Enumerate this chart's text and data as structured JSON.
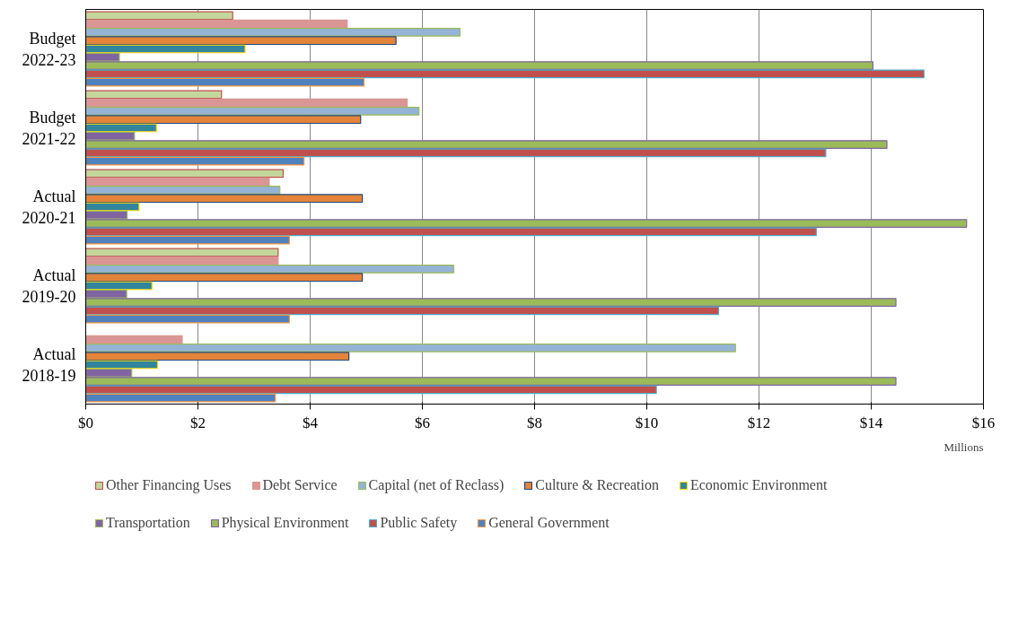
{
  "chart_data": {
    "type": "bar",
    "orientation": "horizontal",
    "xlabel": "Millions",
    "categories": [
      "Budget 2022-23",
      "Budget 2021-22",
      "Actual 2020-21",
      "Actual 2019-20",
      "Actual 2018-19"
    ],
    "series": [
      {
        "name": "Other Financing Uses",
        "color": "#c3d69b",
        "values": [
          2.62,
          2.42,
          3.52,
          3.43,
          0
        ]
      },
      {
        "name": "Debt Service",
        "color": "#d99694",
        "values": [
          4.66,
          5.73,
          3.27,
          3.43,
          1.72
        ]
      },
      {
        "name": "Capital (net of Reclass)",
        "color": "#95b3d7",
        "values": [
          6.67,
          5.94,
          3.46,
          6.56,
          11.58
        ]
      },
      {
        "name": "Culture & Recreation",
        "color": "#e3843a",
        "values": [
          5.53,
          4.9,
          4.93,
          4.93,
          4.69
        ]
      },
      {
        "name": "Economic Environment",
        "color": "#31859c",
        "values": [
          2.84,
          1.26,
          0.95,
          1.18,
          1.28
        ]
      },
      {
        "name": "Transportation",
        "color": "#8064a2",
        "values": [
          0.6,
          0.87,
          0.74,
          0.73,
          0.82
        ]
      },
      {
        "name": "Physical Environment",
        "color": "#9bbb59",
        "values": [
          14.03,
          14.28,
          15.7,
          14.44,
          14.44
        ]
      },
      {
        "name": "Public Safety",
        "color": "#c0504d",
        "values": [
          14.94,
          13.19,
          13.02,
          11.28,
          10.17
        ]
      },
      {
        "name": "General Government",
        "color": "#4f81bd",
        "values": [
          4.96,
          3.89,
          3.63,
          3.63,
          3.38
        ]
      }
    ],
    "xlim": [
      0,
      16
    ],
    "xticks": [
      {
        "value": 0,
        "label": "$0"
      },
      {
        "value": 2,
        "label": "$2"
      },
      {
        "value": 4,
        "label": "$4"
      },
      {
        "value": 6,
        "label": "$6"
      },
      {
        "value": 8,
        "label": "$8"
      },
      {
        "value": 10,
        "label": "$10"
      },
      {
        "value": 12,
        "label": "$12"
      },
      {
        "value": 14,
        "label": "$14"
      },
      {
        "value": 16,
        "label": "$16"
      }
    ],
    "grid": "x",
    "legend": "bottom"
  }
}
